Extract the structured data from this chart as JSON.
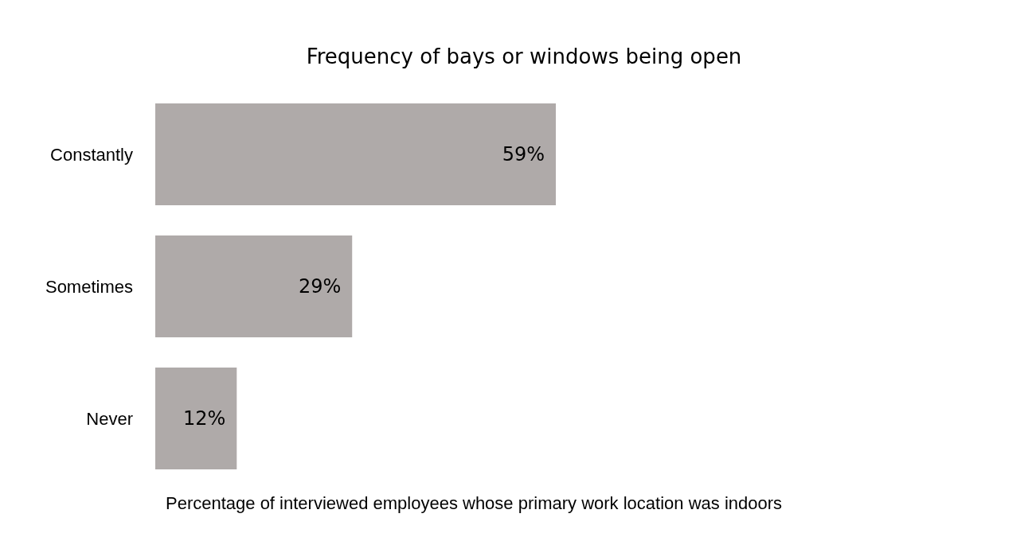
{
  "chart_data": {
    "type": "bar",
    "orientation": "horizontal",
    "title": "Frequency of bays or windows being open",
    "xlabel": "Percentage of interviewed employees whose primary work location was indoors",
    "categories": [
      "Constantly",
      "Sometimes",
      "Never"
    ],
    "values": [
      59,
      29,
      12
    ],
    "value_labels": [
      "59%",
      "29%",
      "12%"
    ],
    "color": "#afaaa9"
  }
}
